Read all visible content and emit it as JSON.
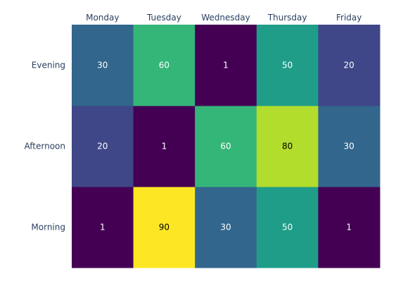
{
  "chart_data": {
    "type": "heatmap",
    "x": [
      "Monday",
      "Tuesday",
      "Wednesday",
      "Thursday",
      "Friday"
    ],
    "y": [
      "Morning",
      "Afternoon",
      "Evening"
    ],
    "z": [
      [
        1,
        90,
        30,
        50,
        1
      ],
      [
        20,
        1,
        60,
        80,
        30
      ],
      [
        30,
        60,
        1,
        50,
        20
      ]
    ],
    "title": "",
    "xlabel": "",
    "ylabel": "",
    "x_axis_position": "top",
    "y_order": "bottom-to-top",
    "colorscale": "Viridis",
    "zmin": 1,
    "zmax": 90,
    "showscale": false,
    "show_values": true,
    "text_color_dark": "#000000",
    "text_color_light": "#ffffff"
  }
}
